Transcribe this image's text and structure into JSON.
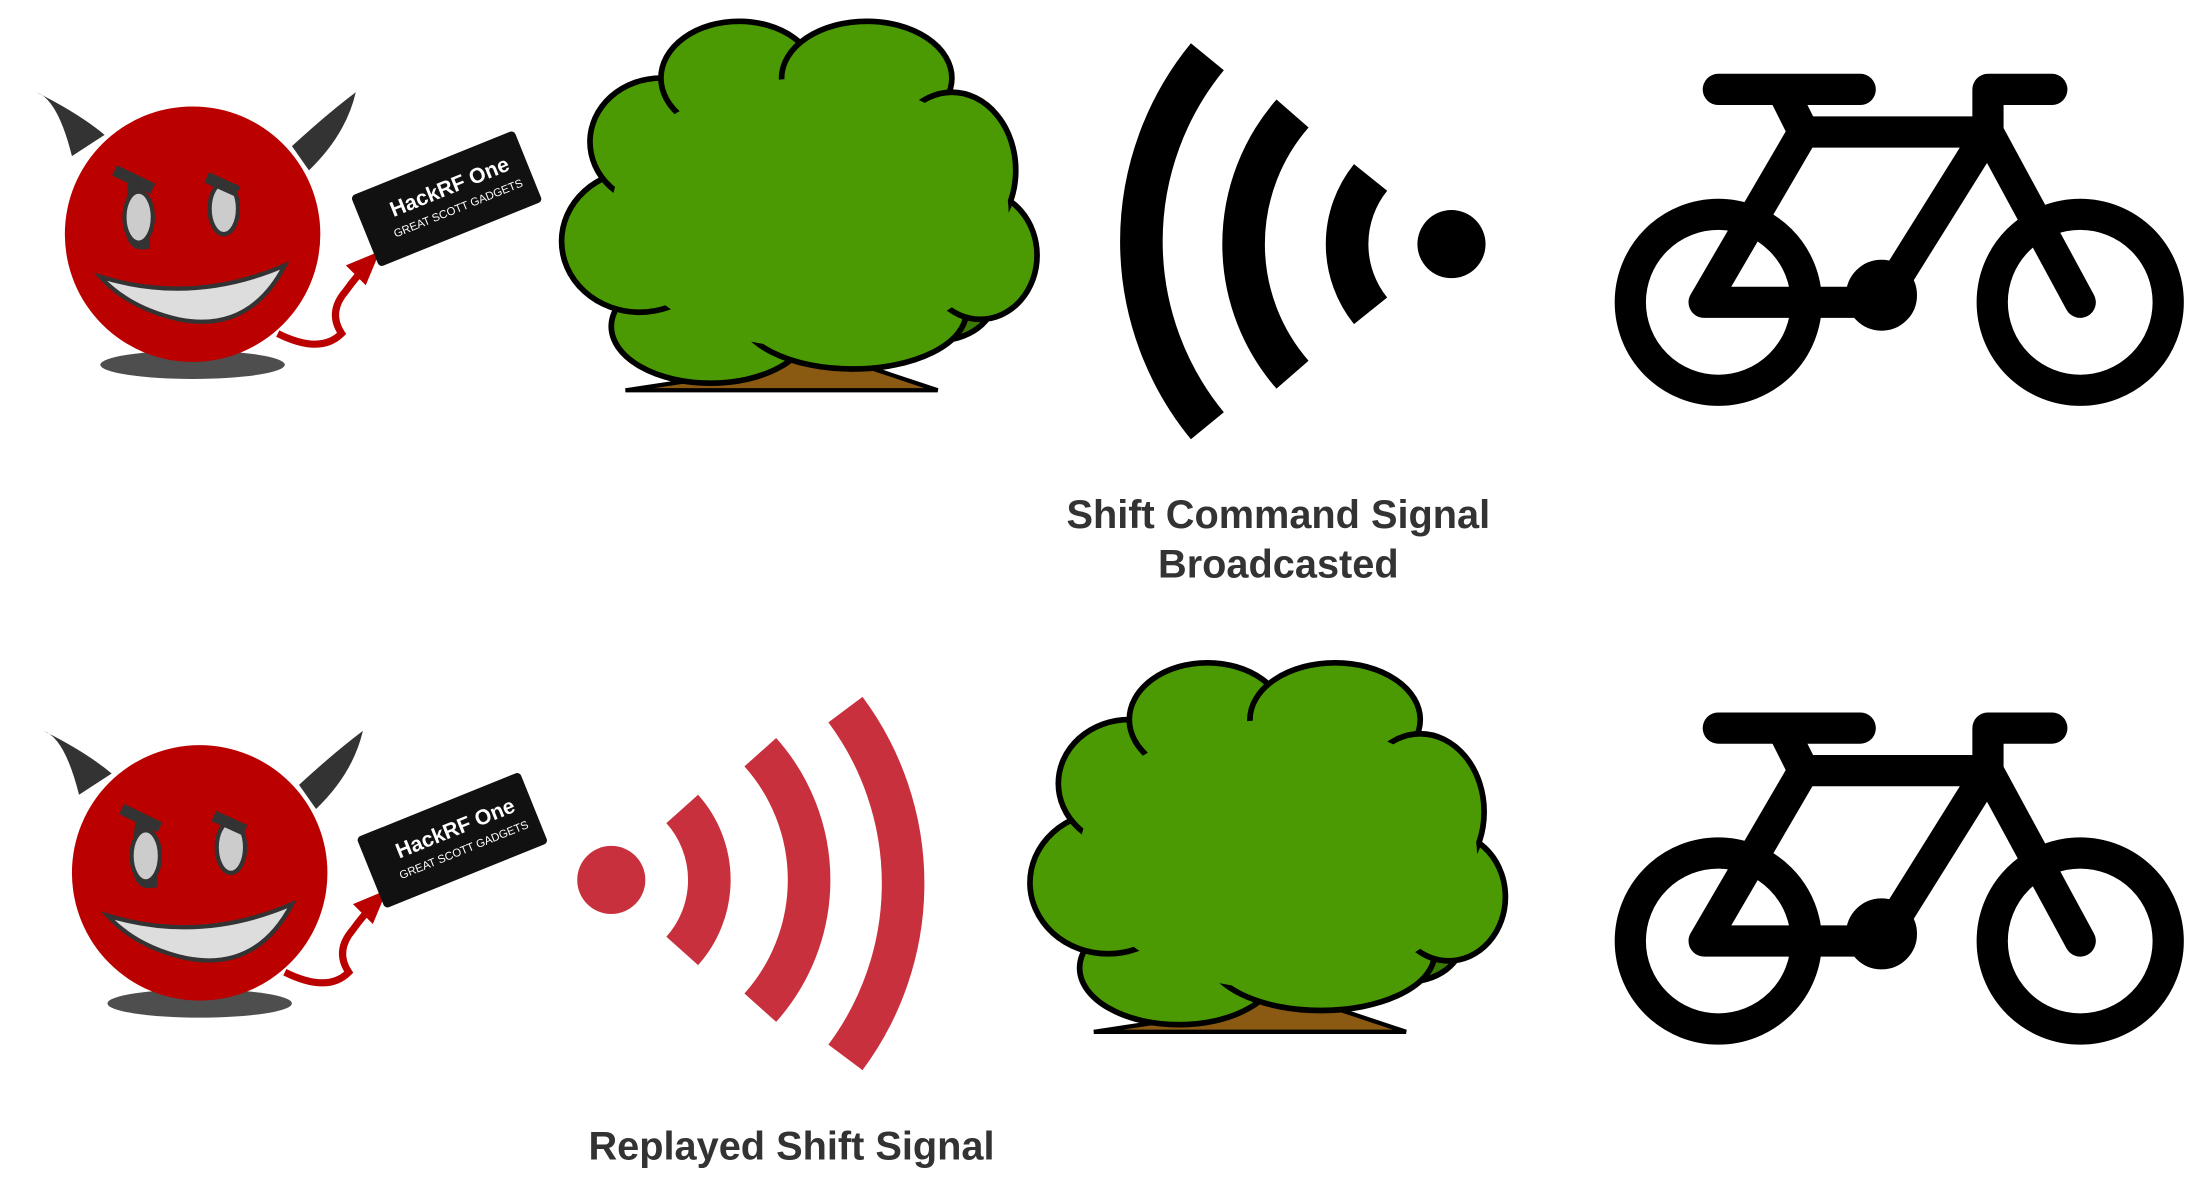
{
  "rows": [
    {
      "device": {
        "name": "HackRF One",
        "maker": "GREAT SCOTT GADGETS"
      },
      "caption": [
        "Shift Command Signal",
        "Broadcasted"
      ]
    },
    {
      "device": {
        "name": "HackRF One",
        "maker": "GREAT SCOTT GADGETS"
      },
      "caption": [
        "Replayed Shift Signal"
      ]
    }
  ]
}
